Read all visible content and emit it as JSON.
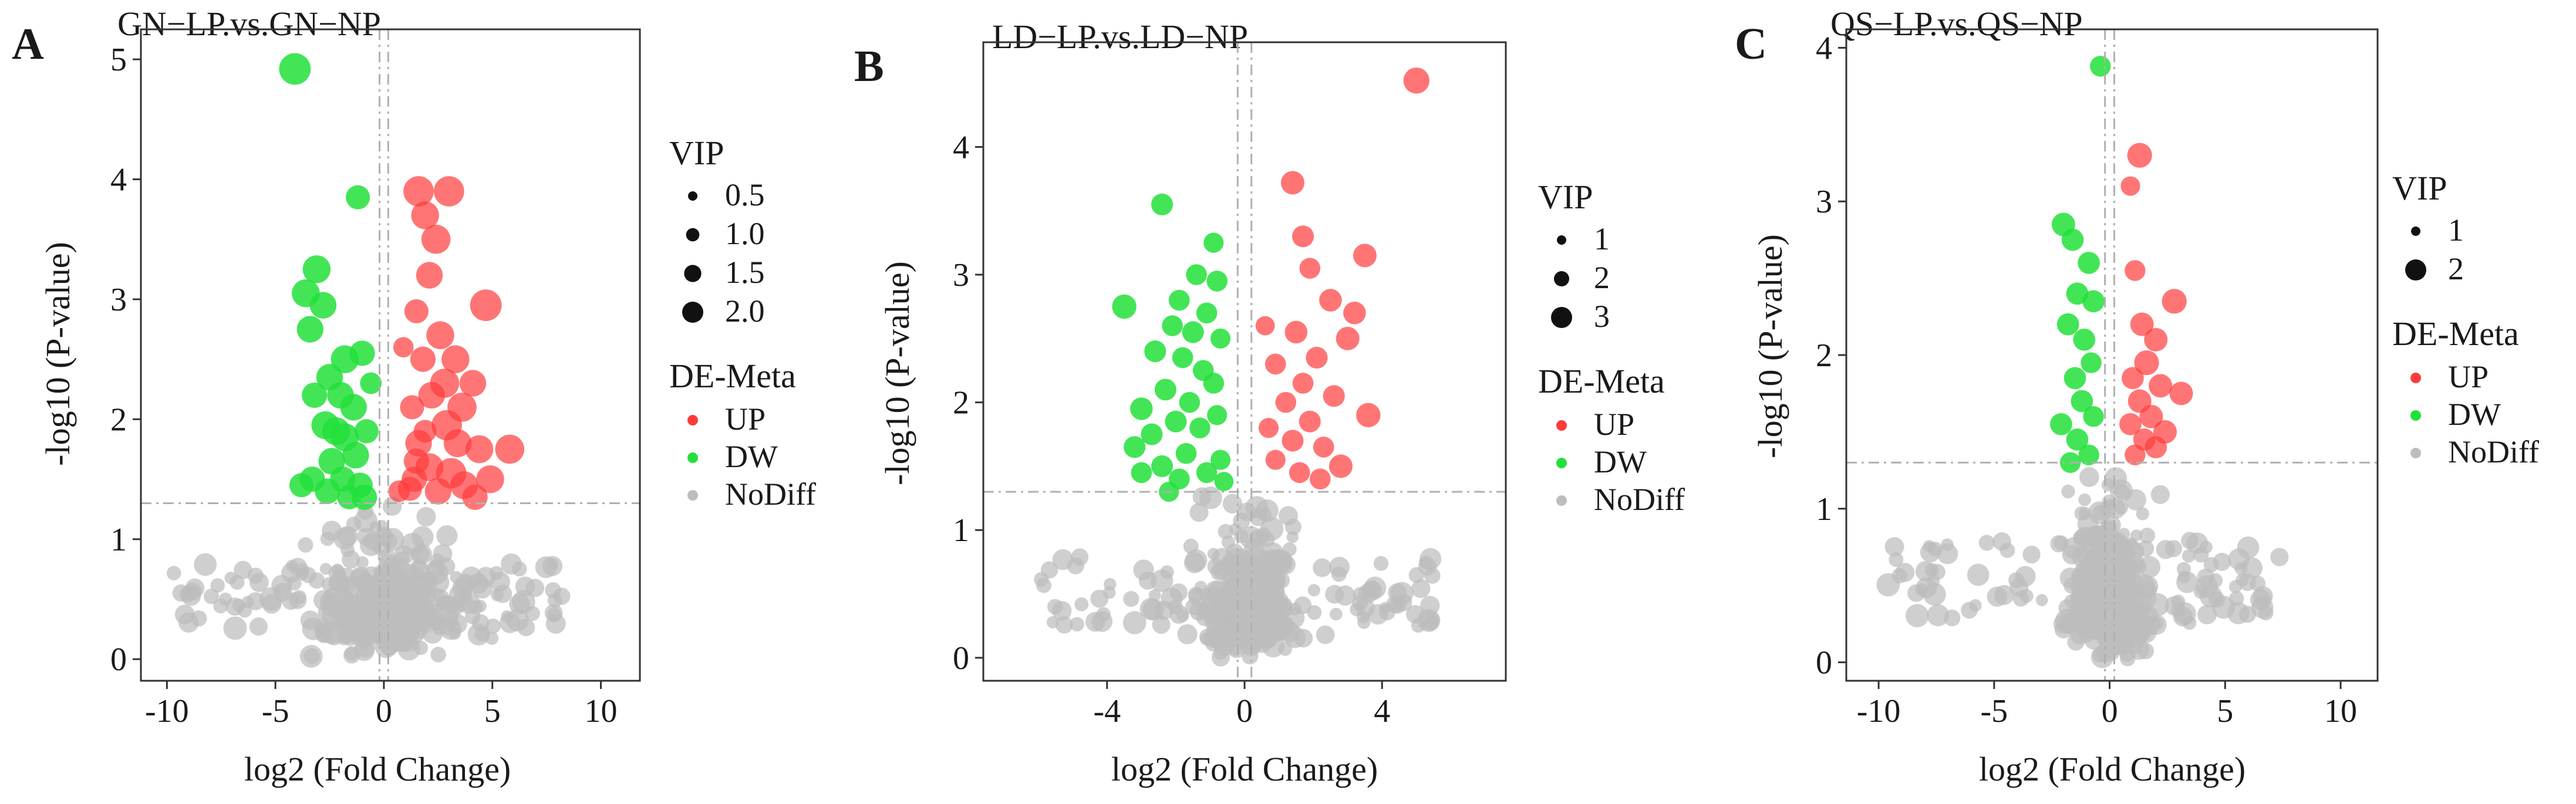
{
  "figure": {
    "colors": {
      "UP": "#ff3b3b",
      "DW": "#22e03a",
      "NoDiff": "#bdbdbd"
    }
  },
  "chart_data": [
    {
      "panel": "A",
      "type": "scatter",
      "title": "GN−LP.vs.GN−NP",
      "xlabel": "log2 (Fold Change)",
      "ylabel": "-log10 (P-value)",
      "xlim": [
        -11.2,
        11.8
      ],
      "ylim": [
        -0.18,
        5.25
      ],
      "xticks": [
        -10,
        -5,
        0,
        5,
        10
      ],
      "yticks": [
        0,
        1,
        2,
        3,
        4,
        5
      ],
      "thresholds": {
        "fc": [
          -0.2,
          0.2
        ],
        "p": 1.3
      },
      "legend": {
        "vip_title": "VIP",
        "vip_sizes": [
          {
            "label": "0.5",
            "vip": 0.5
          },
          {
            "label": "1.0",
            "vip": 1.0
          },
          {
            "label": "1.5",
            "vip": 1.5
          },
          {
            "label": "2.0",
            "vip": 2.0
          }
        ],
        "de_title": "DE-Meta",
        "de_labels": [
          "UP",
          "DW",
          "NoDiff"
        ]
      },
      "vip_range": [
        0.5,
        2.0
      ],
      "points_up": [
        [
          1.6,
          3.9,
          1.8
        ],
        [
          3.0,
          3.9,
          1.8
        ],
        [
          2.4,
          3.5,
          1.7
        ],
        [
          1.9,
          3.7,
          1.6
        ],
        [
          2.1,
          3.2,
          1.5
        ],
        [
          4.7,
          2.95,
          1.9
        ],
        [
          1.5,
          2.9,
          1.3
        ],
        [
          2.6,
          2.7,
          1.6
        ],
        [
          3.3,
          2.5,
          1.6
        ],
        [
          1.8,
          2.5,
          1.4
        ],
        [
          4.1,
          2.3,
          1.5
        ],
        [
          2.2,
          2.2,
          1.5
        ],
        [
          3.6,
          2.1,
          1.7
        ],
        [
          1.3,
          2.1,
          1.3
        ],
        [
          2.9,
          1.95,
          1.8
        ],
        [
          1.6,
          1.8,
          1.5
        ],
        [
          4.4,
          1.75,
          1.6
        ],
        [
          5.8,
          1.75,
          1.7
        ],
        [
          2.1,
          1.6,
          1.6
        ],
        [
          3.1,
          1.55,
          1.8
        ],
        [
          1.4,
          1.5,
          1.4
        ],
        [
          3.7,
          1.45,
          1.6
        ],
        [
          4.9,
          1.5,
          1.6
        ],
        [
          2.5,
          1.4,
          1.5
        ],
        [
          1.2,
          1.42,
          1.3
        ],
        [
          0.7,
          1.4,
          1.1
        ],
        [
          4.2,
          1.35,
          1.4
        ],
        [
          1.9,
          1.9,
          1.2
        ],
        [
          0.9,
          2.6,
          1.0
        ],
        [
          2.8,
          2.3,
          1.7
        ],
        [
          1.5,
          1.65,
          1.4
        ],
        [
          3.4,
          1.8,
          1.6
        ]
      ],
      "points_dw": [
        [
          -4.1,
          4.92,
          1.9
        ],
        [
          -1.2,
          3.85,
          1.3
        ],
        [
          -3.1,
          3.25,
          1.6
        ],
        [
          -3.6,
          3.05,
          1.6
        ],
        [
          -2.8,
          2.95,
          1.5
        ],
        [
          -3.4,
          2.75,
          1.5
        ],
        [
          -1.8,
          2.5,
          1.6
        ],
        [
          -1.0,
          2.55,
          1.4
        ],
        [
          -2.5,
          2.35,
          1.5
        ],
        [
          -3.2,
          2.2,
          1.4
        ],
        [
          -2.0,
          2.2,
          1.5
        ],
        [
          -1.4,
          2.1,
          1.5
        ],
        [
          -2.7,
          1.95,
          1.6
        ],
        [
          -1.8,
          1.85,
          1.6
        ],
        [
          -0.8,
          1.9,
          1.3
        ],
        [
          -1.3,
          1.7,
          1.5
        ],
        [
          -2.4,
          1.65,
          1.5
        ],
        [
          -1.9,
          1.5,
          1.4
        ],
        [
          -1.1,
          1.45,
          1.4
        ],
        [
          -3.3,
          1.5,
          1.4
        ],
        [
          -2.6,
          1.4,
          1.4
        ],
        [
          -0.9,
          1.35,
          1.4
        ],
        [
          -1.6,
          1.35,
          1.3
        ],
        [
          -3.8,
          1.45,
          1.3
        ],
        [
          -0.6,
          2.3,
          1.1
        ],
        [
          -2.2,
          1.9,
          1.6
        ]
      ],
      "grey": {
        "count": 380,
        "xspread": 3.4,
        "tail": [
          -9.8,
          8.2
        ],
        "seed": 11
      }
    },
    {
      "panel": "B",
      "type": "scatter",
      "title": "LD−LP.vs.LD−NP",
      "xlabel": "log2 (Fold Change)",
      "ylabel": "-log10 (P-value)",
      "xlim": [
        -7.6,
        7.6
      ],
      "ylim": [
        -0.18,
        4.82
      ],
      "xticks": [
        -4,
        0,
        4
      ],
      "yticks": [
        0,
        1,
        2,
        3,
        4
      ],
      "thresholds": {
        "fc": [
          -0.2,
          0.2
        ],
        "p": 1.3
      },
      "legend": {
        "vip_title": "VIP",
        "vip_sizes": [
          {
            "label": "1",
            "vip": 1
          },
          {
            "label": "2",
            "vip": 2
          },
          {
            "label": "3",
            "vip": 3
          }
        ],
        "de_title": "DE-Meta",
        "de_labels": [
          "UP",
          "DW",
          "NoDiff"
        ]
      },
      "vip_range": [
        0.8,
        3.0
      ],
      "points_up": [
        [
          5.0,
          4.52,
          2.2
        ],
        [
          1.4,
          3.72,
          1.9
        ],
        [
          1.7,
          3.3,
          1.7
        ],
        [
          3.5,
          3.15,
          1.9
        ],
        [
          1.9,
          3.05,
          1.6
        ],
        [
          2.5,
          2.8,
          1.8
        ],
        [
          3.2,
          2.7,
          1.8
        ],
        [
          1.5,
          2.55,
          1.8
        ],
        [
          3.0,
          2.5,
          1.9
        ],
        [
          2.1,
          2.35,
          1.7
        ],
        [
          0.9,
          2.3,
          1.6
        ],
        [
          1.7,
          2.15,
          1.6
        ],
        [
          2.6,
          2.05,
          1.7
        ],
        [
          1.2,
          2.0,
          1.6
        ],
        [
          3.6,
          1.9,
          2.0
        ],
        [
          1.9,
          1.85,
          1.7
        ],
        [
          0.7,
          1.8,
          1.5
        ],
        [
          1.4,
          1.7,
          1.7
        ],
        [
          2.3,
          1.65,
          1.6
        ],
        [
          0.9,
          1.55,
          1.5
        ],
        [
          2.8,
          1.5,
          1.9
        ],
        [
          1.6,
          1.45,
          1.6
        ],
        [
          0.6,
          2.6,
          1.4
        ],
        [
          2.2,
          1.4,
          1.6
        ]
      ],
      "points_dw": [
        [
          -2.4,
          3.55,
          1.7
        ],
        [
          -0.9,
          3.25,
          1.5
        ],
        [
          -1.4,
          3.0,
          1.6
        ],
        [
          -0.8,
          2.95,
          1.6
        ],
        [
          -1.9,
          2.8,
          1.6
        ],
        [
          -3.5,
          2.75,
          2.0
        ],
        [
          -1.1,
          2.7,
          1.6
        ],
        [
          -2.1,
          2.6,
          1.6
        ],
        [
          -1.5,
          2.55,
          1.7
        ],
        [
          -0.7,
          2.5,
          1.5
        ],
        [
          -2.6,
          2.4,
          1.7
        ],
        [
          -1.8,
          2.35,
          1.6
        ],
        [
          -1.2,
          2.25,
          1.6
        ],
        [
          -0.9,
          2.15,
          1.6
        ],
        [
          -2.3,
          2.1,
          1.7
        ],
        [
          -1.6,
          2.0,
          1.6
        ],
        [
          -3.0,
          1.95,
          1.8
        ],
        [
          -0.8,
          1.9,
          1.5
        ],
        [
          -2.0,
          1.85,
          1.7
        ],
        [
          -1.3,
          1.8,
          1.6
        ],
        [
          -2.7,
          1.75,
          1.7
        ],
        [
          -3.2,
          1.65,
          1.7
        ],
        [
          -1.7,
          1.6,
          1.6
        ],
        [
          -0.7,
          1.55,
          1.5
        ],
        [
          -2.4,
          1.5,
          1.7
        ],
        [
          -1.1,
          1.45,
          1.6
        ],
        [
          -1.9,
          1.4,
          1.6
        ],
        [
          -0.6,
          1.38,
          1.4
        ],
        [
          -3.0,
          1.45,
          1.6
        ],
        [
          -2.2,
          1.3,
          1.5
        ]
      ],
      "grey": {
        "count": 360,
        "xspread": 1.5,
        "tail": [
          -6.0,
          5.5
        ],
        "seed": 23
      }
    },
    {
      "panel": "C",
      "type": "scatter",
      "title": "QS−LP.vs.QS−NP",
      "xlabel": "log2 (Fold Change)",
      "ylabel": "-log10 (P-value)",
      "xlim": [
        -11.4,
        11.6
      ],
      "ylim": [
        -0.12,
        4.12
      ],
      "xticks": [
        -10,
        -5,
        0,
        5,
        10
      ],
      "yticks": [
        0,
        1,
        2,
        3,
        4
      ],
      "thresholds": {
        "fc": [
          -0.2,
          0.2
        ],
        "p": 1.3
      },
      "legend": {
        "vip_title": "VIP",
        "vip_sizes": [
          {
            "label": "1",
            "vip": 1
          },
          {
            "label": "2",
            "vip": 2
          }
        ],
        "de_title": "DE-Meta",
        "de_labels": [
          "UP",
          "DW",
          "NoDiff"
        ]
      },
      "vip_range": [
        0.8,
        2.2
      ],
      "points_up": [
        [
          1.3,
          3.3,
          1.6
        ],
        [
          0.9,
          3.1,
          1.2
        ],
        [
          1.1,
          2.55,
          1.3
        ],
        [
          2.8,
          2.35,
          1.6
        ],
        [
          1.4,
          2.2,
          1.5
        ],
        [
          2.0,
          2.1,
          1.5
        ],
        [
          1.6,
          1.95,
          1.6
        ],
        [
          1.0,
          1.85,
          1.4
        ],
        [
          2.2,
          1.8,
          1.5
        ],
        [
          3.1,
          1.75,
          1.5
        ],
        [
          1.3,
          1.7,
          1.5
        ],
        [
          1.8,
          1.6,
          1.5
        ],
        [
          0.9,
          1.55,
          1.4
        ],
        [
          2.4,
          1.5,
          1.5
        ],
        [
          1.5,
          1.45,
          1.4
        ],
        [
          1.1,
          1.35,
          1.3
        ],
        [
          2.0,
          1.4,
          1.4
        ]
      ],
      "points_dw": [
        [
          -0.4,
          3.88,
          1.3
        ],
        [
          -2.0,
          2.85,
          1.5
        ],
        [
          -1.6,
          2.75,
          1.4
        ],
        [
          -0.9,
          2.6,
          1.4
        ],
        [
          -1.4,
          2.4,
          1.4
        ],
        [
          -0.7,
          2.35,
          1.4
        ],
        [
          -1.8,
          2.2,
          1.4
        ],
        [
          -1.1,
          2.1,
          1.4
        ],
        [
          -0.8,
          1.95,
          1.3
        ],
        [
          -1.5,
          1.85,
          1.4
        ],
        [
          -1.2,
          1.7,
          1.4
        ],
        [
          -0.7,
          1.6,
          1.3
        ],
        [
          -2.1,
          1.55,
          1.4
        ],
        [
          -1.4,
          1.45,
          1.4
        ],
        [
          -0.9,
          1.35,
          1.3
        ],
        [
          -1.7,
          1.3,
          1.3
        ]
      ],
      "grey": {
        "count": 360,
        "xspread": 2.0,
        "tail": [
          -9.6,
          7.4
        ],
        "seed": 37
      }
    }
  ]
}
